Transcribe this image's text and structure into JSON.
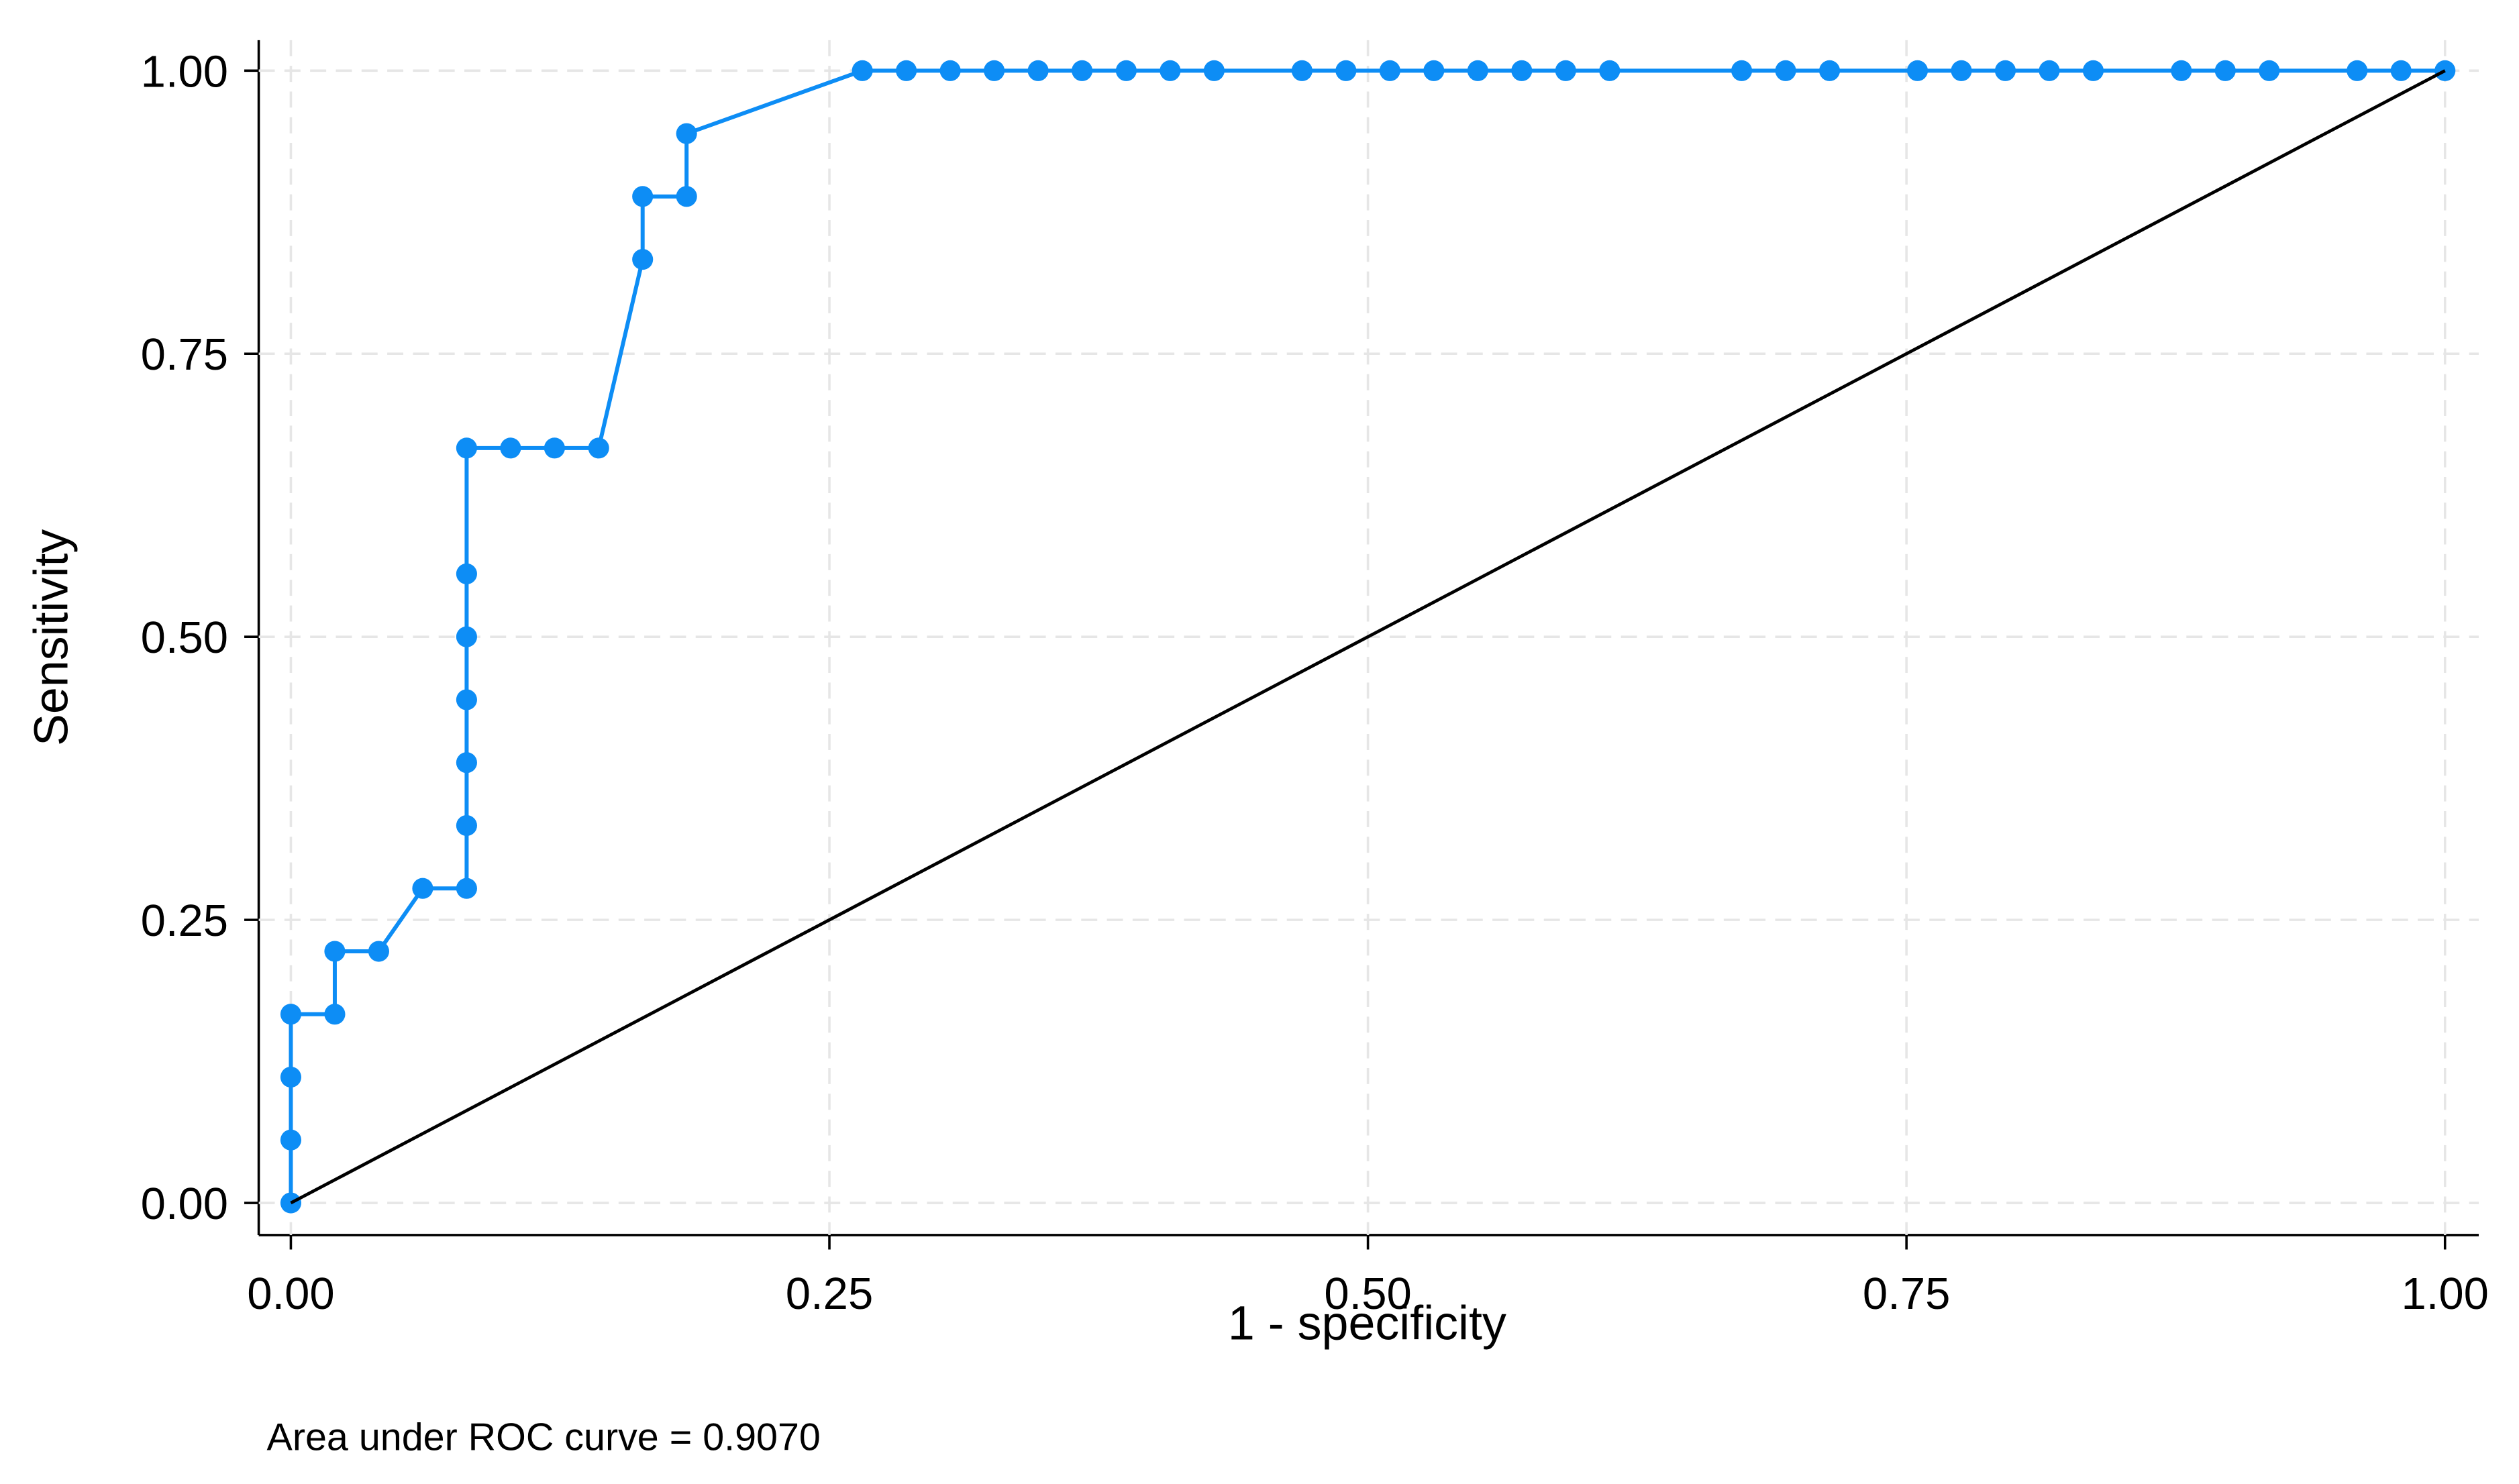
{
  "chart_data": {
    "type": "line",
    "x_label": "1 - specificity",
    "y_label": "Sensitivity",
    "note": "Area under ROC curve = 0.9070",
    "xlim": [
      0,
      1
    ],
    "ylim": [
      0,
      1
    ],
    "xticks": [
      {
        "value": 0,
        "label": "0.00"
      },
      {
        "value": 0.25,
        "label": "0.25"
      },
      {
        "value": 0.5,
        "label": "0.50"
      },
      {
        "value": 0.75,
        "label": "0.75"
      },
      {
        "value": 1,
        "label": "1.00"
      }
    ],
    "yticks": [
      {
        "value": 0,
        "label": "0.00"
      },
      {
        "value": 0.25,
        "label": "0.25"
      },
      {
        "value": 0.5,
        "label": "0.50"
      },
      {
        "value": 0.75,
        "label": "0.75"
      },
      {
        "value": 1,
        "label": "1.00"
      }
    ],
    "grid": true,
    "series": [
      {
        "color": "#0d8df5",
        "markers": true,
        "x": [
          0,
          0,
          0,
          0,
          0.0204,
          0.0204,
          0.0408,
          0.0612,
          0.0816,
          0.0816,
          0.0816,
          0.0816,
          0.0816,
          0.0816,
          0.0816,
          0.102,
          0.1224,
          0.1429,
          0.1633,
          0.1633,
          0.1837,
          0.1837,
          0.2653,
          0.2857,
          0.3061,
          0.3265,
          0.3469,
          0.3673,
          0.3878,
          0.4082,
          0.4286,
          0.4694,
          0.4898,
          0.5102,
          0.5306,
          0.551,
          0.5714,
          0.5918,
          0.6122,
          0.6735,
          0.6939,
          0.7143,
          0.7551,
          0.7755,
          0.7959,
          0.8163,
          0.8367,
          0.8776,
          0.898,
          0.9184,
          0.9592,
          0.9796,
          1
        ],
        "values": [
          0,
          0.0556,
          0.1111,
          0.1667,
          0.1667,
          0.2222,
          0.2222,
          0.2778,
          0.2778,
          0.3333,
          0.3889,
          0.4444,
          0.5,
          0.5556,
          0.6667,
          0.6667,
          0.6667,
          0.6667,
          0.8333,
          0.8889,
          0.8889,
          0.9444,
          1,
          1,
          1,
          1,
          1,
          1,
          1,
          1,
          1,
          1,
          1,
          1,
          1,
          1,
          1,
          1,
          1,
          1,
          1,
          1,
          1,
          1,
          1,
          1,
          1,
          1,
          1,
          1,
          1,
          1,
          1
        ]
      },
      {
        "color": "#000000",
        "markers": false,
        "x": [
          0,
          1
        ],
        "values": [
          0,
          1
        ]
      }
    ]
  }
}
